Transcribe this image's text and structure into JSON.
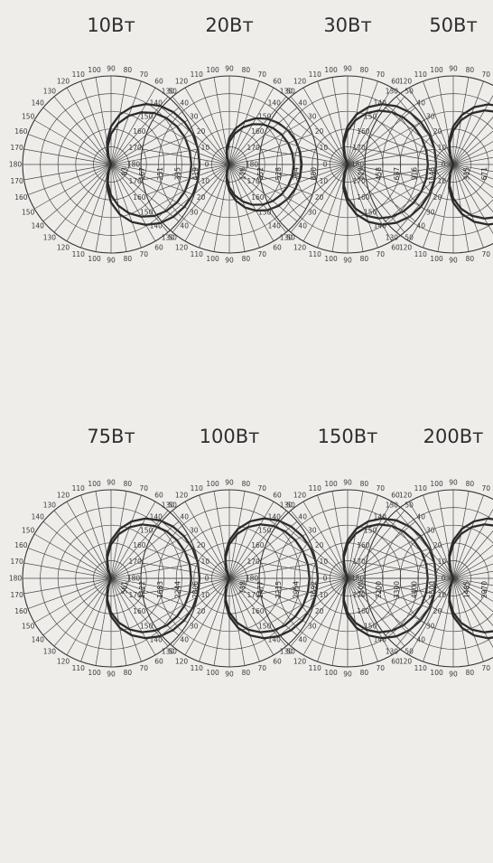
{
  "chart_data": [
    {
      "type": "polar",
      "title": "10Вт",
      "angles": [
        "0",
        "10",
        "20",
        "30",
        "40",
        "50",
        "60",
        "70",
        "80",
        "90",
        "100",
        "110",
        "120",
        "130",
        "140",
        "150",
        "160",
        "170",
        "180",
        "170",
        "160",
        "150",
        "140",
        "130",
        "120",
        "110",
        "100",
        "90",
        "80",
        "70",
        "60",
        "50",
        "40",
        "30",
        "20",
        "10"
      ],
      "rings": [
        "83",
        "167",
        "251",
        "335",
        "419"
      ],
      "series": [
        {
          "values": [
            419,
            418,
            412,
            401,
            385,
            362,
            330,
            290,
            240,
            180,
            110,
            50,
            0
          ]
        },
        {
          "values": [
            380,
            378,
            372,
            360,
            342,
            318,
            285,
            245,
            198,
            145,
            88,
            38,
            0
          ]
        }
      ]
    },
    {
      "type": "polar",
      "title": "20Вт",
      "angles": [
        "0",
        "10",
        "20",
        "30",
        "40",
        "50",
        "60",
        "70",
        "80",
        "90",
        "100",
        "110",
        "120",
        "130",
        "140",
        "150",
        "160",
        "170",
        "180",
        "170",
        "160",
        "150",
        "140",
        "130",
        "120",
        "110",
        "100",
        "90",
        "80",
        "70",
        "60",
        "50",
        "40",
        "30",
        "20",
        "10"
      ],
      "rings": [
        "176",
        "352",
        "528",
        "704",
        "880"
      ],
      "series": [
        {
          "values": [
            720,
            715,
            700,
            675,
            640,
            592,
            530,
            455,
            365,
            265,
            160,
            70,
            0
          ]
        },
        {
          "values": [
            640,
            636,
            622,
            598,
            565,
            520,
            462,
            392,
            312,
            225,
            135,
            58,
            0
          ]
        }
      ]
    },
    {
      "type": "polar",
      "title": "30Вт",
      "angles": [
        "0",
        "10",
        "20",
        "30",
        "40",
        "50",
        "60",
        "70",
        "80",
        "90",
        "100",
        "110",
        "120",
        "130",
        "140",
        "150",
        "160",
        "170",
        "180",
        "170",
        "160",
        "150",
        "140",
        "130",
        "120",
        "110",
        "100",
        "90",
        "80",
        "70",
        "60",
        "50",
        "40",
        "30",
        "20",
        "10"
      ],
      "rings": [
        "229",
        "458",
        "687",
        "916",
        "1146"
      ],
      "series": [
        {
          "values": [
            1146,
            1143,
            1125,
            1095,
            1050,
            985,
            900,
            790,
            655,
            495,
            315,
            140,
            0
          ]
        },
        {
          "values": [
            1040,
            1036,
            1018,
            988,
            945,
            885,
            805,
            705,
            580,
            435,
            275,
            120,
            0
          ]
        }
      ]
    },
    {
      "type": "polar",
      "title": "50Вт",
      "angles": [
        "0",
        "10",
        "20",
        "30",
        "40",
        "50",
        "60",
        "70",
        "80",
        "90",
        "100",
        "110",
        "120",
        "130",
        "140",
        "150",
        "160",
        "170",
        "180",
        "170",
        "160",
        "150",
        "140",
        "130",
        "120",
        "110",
        "100",
        "90",
        "80",
        "70",
        "60",
        "50",
        "40",
        "30",
        "20",
        "10"
      ],
      "rings": [
        "335",
        "671",
        "1006",
        "1342",
        "1678"
      ],
      "series": [
        {
          "values": [
            1678,
            1674,
            1648,
            1602,
            1535,
            1440,
            1315,
            1155,
            955,
            725,
            460,
            205,
            0
          ]
        },
        {
          "values": [
            1520,
            1515,
            1490,
            1448,
            1385,
            1298,
            1182,
            1035,
            852,
            642,
            405,
            178,
            0
          ]
        }
      ]
    },
    {
      "type": "polar",
      "title": "75Вт",
      "angles": [
        "0",
        "10",
        "20",
        "30",
        "40",
        "50",
        "60",
        "70",
        "80",
        "90",
        "100",
        "110",
        "120",
        "130",
        "140",
        "150",
        "160",
        "170",
        "180",
        "170",
        "160",
        "150",
        "140",
        "130",
        "120",
        "110",
        "100",
        "90",
        "80",
        "70",
        "60",
        "50",
        "40",
        "30",
        "20",
        "10"
      ],
      "rings": [
        "561",
        "1122",
        "1683",
        "2244",
        "2806"
      ],
      "series": [
        {
          "values": [
            2806,
            2798,
            2752,
            2672,
            2558,
            2400,
            2190,
            1920,
            1590,
            1205,
            765,
            340,
            0
          ]
        },
        {
          "values": [
            2540,
            2532,
            2490,
            2415,
            2310,
            2165,
            1972,
            1726,
            1426,
            1078,
            682,
            302,
            0
          ]
        }
      ]
    },
    {
      "type": "polar",
      "title": "100Вт",
      "angles": [
        "0",
        "10",
        "20",
        "30",
        "40",
        "50",
        "60",
        "70",
        "80",
        "90",
        "100",
        "110",
        "120",
        "130",
        "140",
        "150",
        "160",
        "170",
        "180",
        "170",
        "160",
        "150",
        "140",
        "130",
        "120",
        "110",
        "100",
        "90",
        "80",
        "70",
        "60",
        "50",
        "40",
        "30",
        "20",
        "10"
      ],
      "rings": [
        "738",
        "1477",
        "2215",
        "2954",
        "3692"
      ],
      "series": [
        {
          "values": [
            3692,
            3682,
            3622,
            3516,
            3365,
            3158,
            2882,
            2528,
            2092,
            1586,
            1006,
            448,
            0
          ]
        },
        {
          "values": [
            3340,
            3330,
            3275,
            3178,
            3040,
            2850,
            2598,
            2275,
            1880,
            1422,
            900,
            400,
            0
          ]
        }
      ]
    },
    {
      "type": "polar",
      "title": "150Вт",
      "angles": [
        "0",
        "10",
        "20",
        "30",
        "40",
        "50",
        "60",
        "70",
        "80",
        "90",
        "100",
        "110",
        "120",
        "130",
        "140",
        "150",
        "160",
        "170",
        "180",
        "170",
        "160",
        "150",
        "140",
        "130",
        "120",
        "110",
        "100",
        "90",
        "80",
        "70",
        "60",
        "50",
        "40",
        "30",
        "20",
        "10"
      ],
      "rings": [
        "1100",
        "2200",
        "3300",
        "4400",
        "5500"
      ],
      "series": [
        {
          "values": [
            5500,
            5485,
            5395,
            5238,
            5012,
            4705,
            4293,
            3766,
            3117,
            2362,
            1498,
            667,
            0
          ]
        },
        {
          "values": [
            4980,
            4966,
            4884,
            4740,
            4533,
            4252,
            3876,
            3396,
            2806,
            2123,
            1344,
            597,
            0
          ]
        }
      ]
    },
    {
      "type": "polar",
      "title": "200Вт",
      "angles": [
        "0",
        "10",
        "20",
        "30",
        "40",
        "50",
        "60",
        "70",
        "80",
        "90",
        "100",
        "110",
        "120",
        "130",
        "140",
        "150",
        "160",
        "170",
        "180",
        "170",
        "160",
        "150",
        "140",
        "130",
        "120",
        "110",
        "100",
        "90",
        "80",
        "70",
        "60",
        "50",
        "40",
        "30",
        "20",
        "10"
      ],
      "rings": [
        "1485",
        "2970",
        "4456",
        "5941",
        "7426"
      ],
      "series": [
        {
          "values": [
            7426,
            7406,
            7285,
            7072,
            6768,
            6352,
            5796,
            5085,
            4208,
            3189,
            2023,
            900,
            0
          ]
        },
        {
          "values": [
            6720,
            6702,
            6590,
            6395,
            6116,
            5736,
            5228,
            4580,
            3786,
            2864,
            1812,
            804,
            0
          ]
        }
      ]
    }
  ]
}
